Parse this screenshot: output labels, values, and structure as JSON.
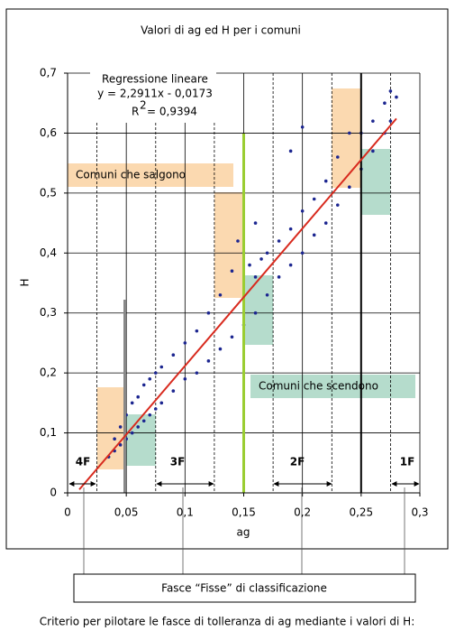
{
  "chart_data": {
    "type": "scatter",
    "title": "Valori di ag ed H per i comuni",
    "xlabel": "ag",
    "ylabel": "H",
    "color": "#1c2690",
    "x": [
      0.035,
      0.04,
      0.04,
      0.045,
      0.045,
      0.05,
      0.05,
      0.055,
      0.055,
      0.06,
      0.06,
      0.065,
      0.065,
      0.07,
      0.07,
      0.075,
      0.075,
      0.08,
      0.08,
      0.09,
      0.09,
      0.1,
      0.1,
      0.11,
      0.11,
      0.12,
      0.12,
      0.13,
      0.13,
      0.14,
      0.14,
      0.145,
      0.15,
      0.15,
      0.155,
      0.16,
      0.16,
      0.165,
      0.17,
      0.17,
      0.18,
      0.18,
      0.19,
      0.19,
      0.2,
      0.2,
      0.21,
      0.21,
      0.22,
      0.22,
      0.23,
      0.23,
      0.24,
      0.24,
      0.25,
      0.25,
      0.26,
      0.26,
      0.27,
      0.27,
      0.275,
      0.275,
      0.28,
      0.19,
      0.2,
      0.16
    ],
    "values": [
      0.06,
      0.09,
      0.07,
      0.11,
      0.08,
      0.13,
      0.09,
      0.15,
      0.1,
      0.16,
      0.11,
      0.18,
      0.12,
      0.19,
      0.13,
      0.2,
      0.14,
      0.21,
      0.15,
      0.23,
      0.17,
      0.25,
      0.19,
      0.27,
      0.2,
      0.3,
      0.22,
      0.33,
      0.24,
      0.37,
      0.26,
      0.42,
      0.4,
      0.28,
      0.38,
      0.36,
      0.3,
      0.39,
      0.4,
      0.33,
      0.42,
      0.36,
      0.44,
      0.38,
      0.47,
      0.4,
      0.49,
      0.43,
      0.52,
      0.45,
      0.56,
      0.48,
      0.6,
      0.51,
      0.6,
      0.54,
      0.62,
      0.57,
      0.65,
      0.6,
      0.67,
      0.62,
      0.66,
      0.57,
      0.61,
      0.45
    ],
    "xlim": [
      0,
      0.3
    ],
    "ylim": [
      0,
      0.7
    ],
    "xticks": [
      0,
      {
        "value": 0.05,
        "label": "0,05"
      },
      {
        "value": 0.1,
        "label": "0,1"
      },
      {
        "value": 0.15,
        "label": "0,15"
      },
      {
        "value": 0.2,
        "label": "0,2"
      },
      {
        "value": 0.25,
        "label": "0,25"
      },
      {
        "value": 0.3,
        "label": "0,3"
      }
    ],
    "yticks": [
      0,
      {
        "value": 0.1,
        "label": "0,1"
      },
      {
        "value": 0.2,
        "label": "0,2"
      },
      {
        "value": 0.3,
        "label": "0,3"
      },
      {
        "value": 0.4,
        "label": "0,4"
      },
      {
        "value": 0.5,
        "label": "0,5"
      },
      {
        "value": 0.6,
        "label": "0,6"
      },
      {
        "value": 0.7,
        "label": "0,7"
      }
    ],
    "grid": true,
    "regression": {
      "title": "Regressione lineare",
      "equation": "y = 2,2911x - 0,0173",
      "r2_symbol": "R",
      "r2_power": "2",
      "r2_text": "= 0,9394",
      "slope": 2.2911,
      "intercept": -0.0173,
      "xrange": [
        0.01,
        0.28
      ],
      "color": "#d82a1e"
    },
    "annotations": {
      "up": "Comuni che salgono",
      "down": "Comuni che scendono"
    },
    "bands": [
      "4F",
      "3F",
      "2F",
      "1F"
    ]
  },
  "footer": {
    "box_label": "Fasce “Fisse” di classificazione",
    "caption": "Criterio per pilotare le fasce di tolleranza di ag mediante i valori di H:"
  }
}
